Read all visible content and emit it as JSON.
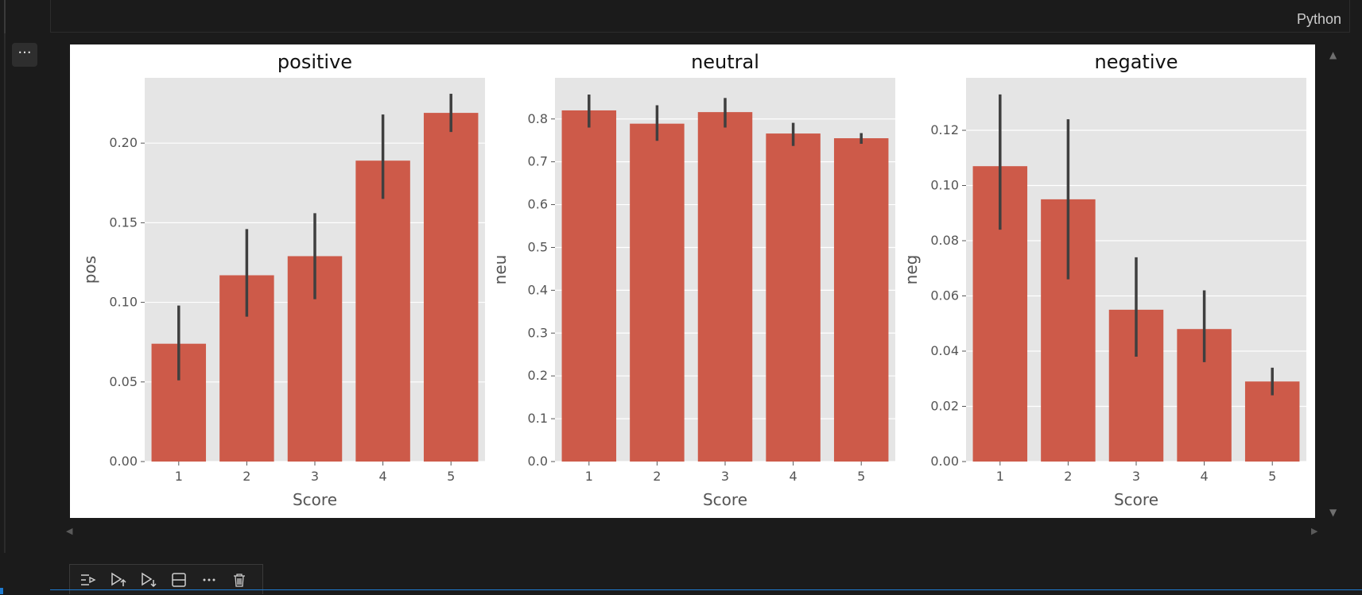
{
  "editor": {
    "language": "Python"
  },
  "output_menu": {
    "label": "···"
  },
  "chart_data": [
    {
      "type": "bar",
      "title": "positive",
      "xlabel": "Score",
      "ylabel": "pos",
      "categories": [
        "1",
        "2",
        "3",
        "4",
        "5"
      ],
      "values": [
        0.074,
        0.117,
        0.129,
        0.189,
        0.219
      ],
      "error_bars": [
        [
          0.051,
          0.098
        ],
        [
          0.091,
          0.146
        ],
        [
          0.102,
          0.156
        ],
        [
          0.165,
          0.218
        ],
        [
          0.207,
          0.231
        ]
      ],
      "ylim": [
        0,
        0.241
      ],
      "yticks": [
        "0.00",
        "0.05",
        "0.10",
        "0.15",
        "0.20"
      ],
      "ytick_values": [
        0,
        0.05,
        0.1,
        0.15,
        0.2
      ],
      "grid": true,
      "color": "#cd5a49"
    },
    {
      "type": "bar",
      "title": "neutral",
      "xlabel": "Score",
      "ylabel": "neu",
      "categories": [
        "1",
        "2",
        "3",
        "4",
        "5"
      ],
      "values": [
        0.82,
        0.789,
        0.816,
        0.766,
        0.755
      ],
      "error_bars": [
        [
          0.78,
          0.857
        ],
        [
          0.749,
          0.832
        ],
        [
          0.78,
          0.849
        ],
        [
          0.737,
          0.791
        ],
        [
          0.742,
          0.767
        ]
      ],
      "ylim": [
        0,
        0.896
      ],
      "yticks": [
        "0.0",
        "0.1",
        "0.2",
        "0.3",
        "0.4",
        "0.5",
        "0.6",
        "0.7",
        "0.8"
      ],
      "ytick_values": [
        0,
        0.1,
        0.2,
        0.3,
        0.4,
        0.5,
        0.6,
        0.7,
        0.8
      ],
      "grid": true,
      "color": "#cd5a49"
    },
    {
      "type": "bar",
      "title": "negative",
      "xlabel": "Score",
      "ylabel": "neg",
      "categories": [
        "1",
        "2",
        "3",
        "4",
        "5"
      ],
      "values": [
        0.107,
        0.095,
        0.055,
        0.048,
        0.029
      ],
      "error_bars": [
        [
          0.084,
          0.133
        ],
        [
          0.066,
          0.124
        ],
        [
          0.038,
          0.074
        ],
        [
          0.036,
          0.062
        ],
        [
          0.024,
          0.034
        ]
      ],
      "ylim": [
        0,
        0.139
      ],
      "yticks": [
        "0.00",
        "0.02",
        "0.04",
        "0.06",
        "0.08",
        "0.10",
        "0.12"
      ],
      "ytick_values": [
        0,
        0.02,
        0.04,
        0.06,
        0.08,
        0.1,
        0.12
      ],
      "grid": true,
      "color": "#cd5a49"
    }
  ],
  "toolbar": {
    "buttons": [
      {
        "name": "run-by-line-icon",
        "glyph": "⇶"
      },
      {
        "name": "execute-above-icon",
        "glyph": "▷"
      },
      {
        "name": "execute-below-icon",
        "glyph": "▷"
      },
      {
        "name": "split-cell-icon",
        "glyph": "⊟"
      },
      {
        "name": "more-actions-icon",
        "glyph": "···"
      },
      {
        "name": "delete-cell-icon",
        "glyph": "🗑"
      }
    ]
  }
}
